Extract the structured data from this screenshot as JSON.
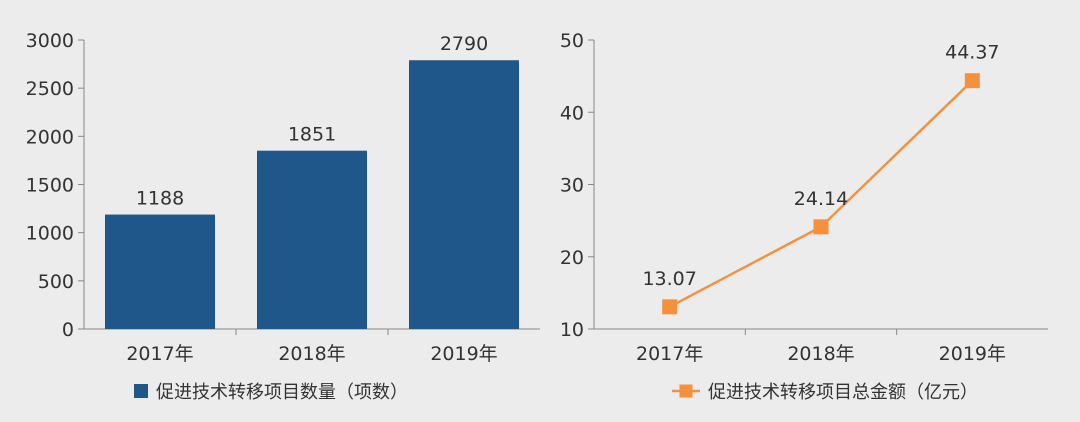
{
  "chart_data": [
    {
      "type": "bar",
      "categories": [
        "2017年",
        "2018年",
        "2019年"
      ],
      "values": [
        1188,
        1851,
        2790
      ],
      "data_labels": [
        "1188",
        "1851",
        "2790"
      ],
      "series_name": "促进技术转移项目数量（项数）",
      "ylim": [
        0,
        3000
      ],
      "yticks": [
        0,
        500,
        1000,
        1500,
        2000,
        2500,
        3000
      ],
      "grid": false,
      "legend": "bottom",
      "color": "#1f578a"
    },
    {
      "type": "line",
      "categories": [
        "2017年",
        "2018年",
        "2019年"
      ],
      "values": [
        13.07,
        24.14,
        44.37
      ],
      "data_labels": [
        "13.07",
        "24.14",
        "44.37"
      ],
      "series_name": "促进技术转移项目总金额（亿元）",
      "ylim": [
        10,
        50
      ],
      "yticks": [
        10,
        20,
        30,
        40,
        50
      ],
      "grid": false,
      "legend": "bottom",
      "color": "#f5913c",
      "marker": "square"
    }
  ]
}
